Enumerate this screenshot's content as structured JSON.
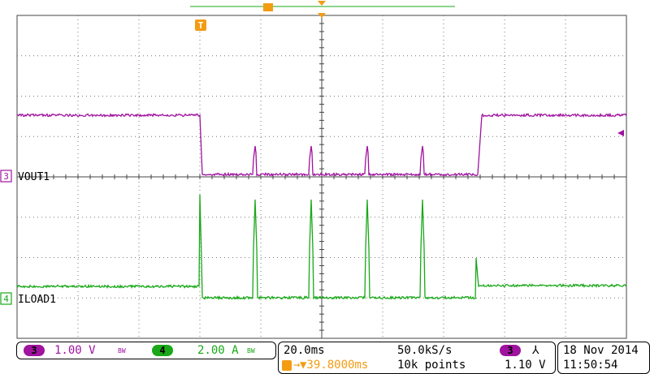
{
  "colors": {
    "ch3": "#a0129f",
    "ch4": "#18a818",
    "trigger": "#f39c12",
    "grid": "#555555"
  },
  "markers": {
    "trigger_position": "T",
    "top_marker": "T",
    "ch3_label": "3",
    "ch3_name": "VOUT1",
    "ch4_label": "4",
    "ch4_name": "ILOAD1"
  },
  "channels_bar": {
    "ch3": {
      "number": "3",
      "scale": "1.00 V",
      "bw": "BW"
    },
    "ch4": {
      "number": "4",
      "scale": "2.00 A",
      "bw": "BW"
    }
  },
  "acquisition": {
    "timebase": "20.0ms",
    "sample_rate": "50.0kS/s",
    "trigger_delay": "▼39.8000ms",
    "record_length": "10k points",
    "trigger_channel": "3",
    "trigger_slope": "⅄",
    "trigger_level": "1.10 V"
  },
  "datetime": {
    "date": "18 Nov 2014",
    "time": "11:50:54"
  }
}
